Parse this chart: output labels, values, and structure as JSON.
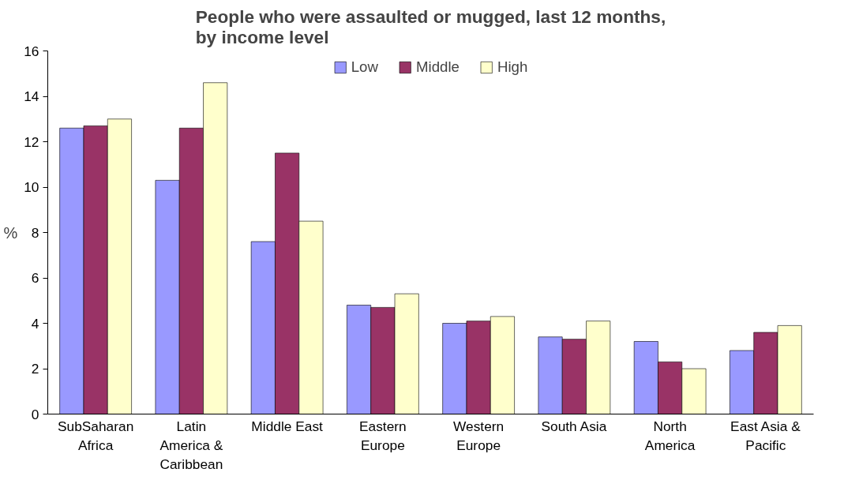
{
  "chart_data": {
    "type": "bar",
    "title": "People who were assaulted or mugged, last 12 months, by income level",
    "ylabel": "%",
    "categories": [
      "SubSaharan Africa",
      "Latin America & Caribbean",
      "Middle East",
      "Eastern Europe",
      "Western Europe",
      "South Asia",
      "North America",
      "East Asia & Pacific"
    ],
    "series": [
      {
        "name": "Low",
        "color": "#9999ff",
        "values": [
          12.6,
          10.3,
          7.6,
          4.8,
          4.0,
          3.4,
          3.2,
          2.8
        ]
      },
      {
        "name": "Middle",
        "color": "#993366",
        "values": [
          12.7,
          12.6,
          11.5,
          4.7,
          4.1,
          3.3,
          2.3,
          3.6
        ]
      },
      {
        "name": "High",
        "color": "#ffffcc",
        "values": [
          13.0,
          14.6,
          8.5,
          5.3,
          4.3,
          4.1,
          2.0,
          3.9
        ]
      }
    ],
    "ylim": [
      0,
      16
    ],
    "yticks": [
      0,
      2,
      4,
      6,
      8,
      10,
      12,
      14,
      16
    ],
    "grid": false,
    "legend": "top"
  }
}
